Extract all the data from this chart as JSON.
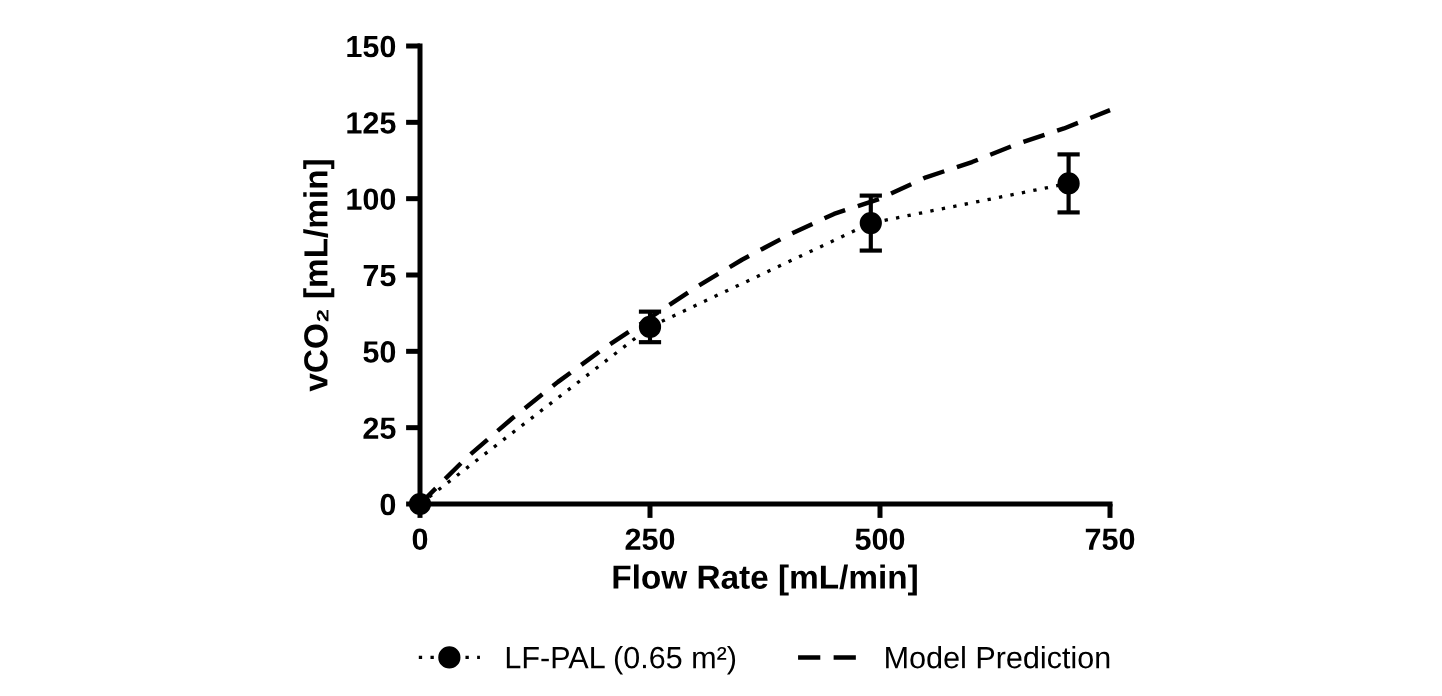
{
  "chart_data": {
    "type": "line",
    "xlabel": "Flow Rate [mL/min]",
    "ylabel": "vCO₂ [mL/min]",
    "xlim": [
      0,
      750
    ],
    "xticks": [
      0,
      250,
      500,
      750
    ],
    "ylim": [
      0,
      150
    ],
    "yticks": [
      0,
      25,
      50,
      75,
      100,
      125,
      150
    ],
    "grid": false,
    "legend": "bottom",
    "series": [
      {
        "name": "LF-PAL (0.65 m²)",
        "color": "#000000",
        "x": [
          0,
          250,
          490,
          705
        ],
        "values": [
          0,
          58,
          92,
          105
        ],
        "errors": [
          null,
          5,
          9,
          9.5
        ],
        "marker": "circle",
        "line_style": "dotted"
      },
      {
        "name": "Model Prediction",
        "color": "#000000",
        "x": [
          0,
          50,
          100,
          150,
          200,
          250,
          300,
          350,
          400,
          450,
          500,
          550,
          600,
          650,
          700,
          750
        ],
        "values": [
          0,
          15,
          28,
          40,
          51,
          61,
          71,
          80,
          88,
          95,
          100,
          107,
          112,
          118,
          123,
          129
        ],
        "marker": "none",
        "line_style": "dashed"
      }
    ]
  }
}
